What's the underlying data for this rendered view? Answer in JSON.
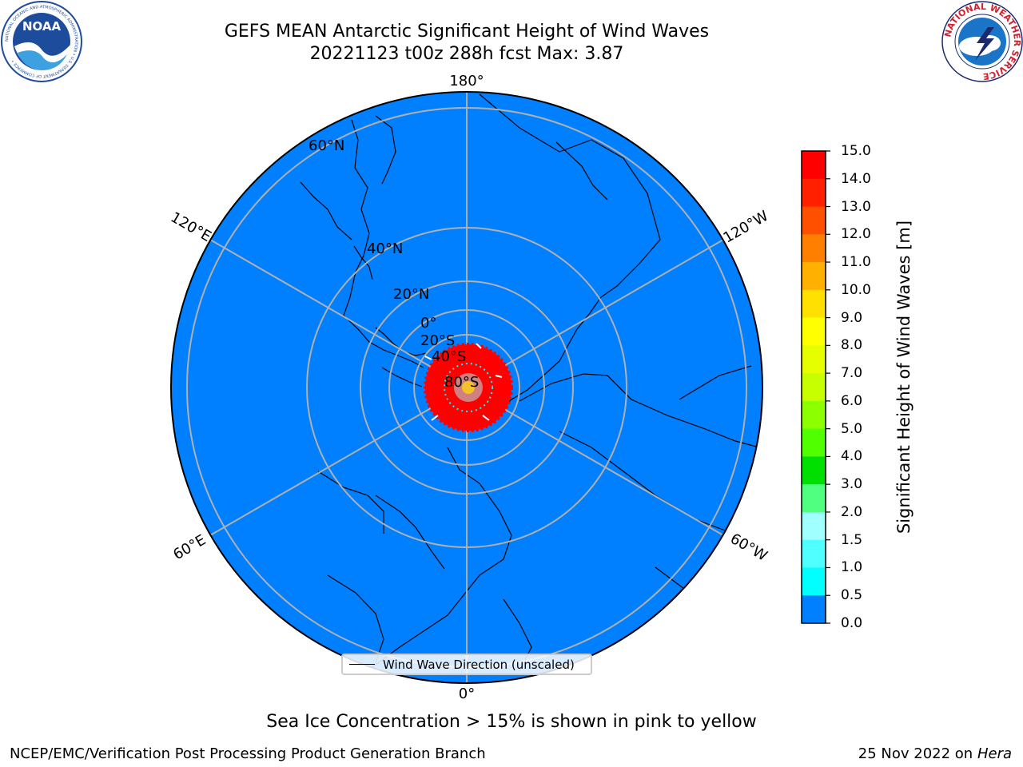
{
  "header": {
    "title_line1": "GEFS MEAN Antarctic Significant Height of Wind Waves",
    "title_line2": "20221123 t00z 288h fcst   Max: 3.87"
  },
  "logos": {
    "left": {
      "name": "NOAA",
      "ring_text": "NATIONAL OCEANIC AND ATMOSPHERIC ADMINISTRATION • U.S. DEPARTMENT OF COMMERCE •",
      "colors": {
        "ring": "#ffffff",
        "inner": "#1e4c9c",
        "wave": "#3da0e0"
      }
    },
    "right": {
      "name": "National Weather Service",
      "ring_text": "NATIONAL WEATHER SERVICE",
      "colors": {
        "ring": "#d2202f",
        "inner": "#1a75c9"
      }
    }
  },
  "map": {
    "projection": "south polar stereographic",
    "ocean_color": "#0080ff",
    "longitude_labels": [
      "180°",
      "120°W",
      "60°W",
      "0°",
      "60°E",
      "120°E"
    ],
    "latitude_labels": [
      "60°N",
      "40°N",
      "20°N",
      "0°",
      "20°S",
      "40°S",
      "80°S"
    ],
    "high_wave_color": "#ff0000"
  },
  "colorbar": {
    "label": "Significant Height of Wind Waves [m]",
    "ticks": [
      "15.0",
      "14.0",
      "13.0",
      "12.0",
      "11.0",
      "10.0",
      "9.0",
      "8.0",
      "7.0",
      "6.0",
      "5.0",
      "4.0",
      "3.0",
      "2.0",
      "1.5",
      "1.0",
      "0.5",
      "0.0"
    ],
    "colors": [
      "#ff0000",
      "#ff2000",
      "#ff5000",
      "#ff8000",
      "#ffb000",
      "#ffe000",
      "#ffff00",
      "#e6ff00",
      "#c8ff00",
      "#8cff00",
      "#50ff00",
      "#00e000",
      "#50ff80",
      "#a0ffff",
      "#50ffff",
      "#00ffff",
      "#0080ff",
      "#0000ff"
    ]
  },
  "legend": {
    "label": "Wind Wave Direction (unscaled)"
  },
  "note": "Sea Ice Concentration > 15% is shown in pink to yellow",
  "footer": {
    "left": "NCEP/EMC/Verification Post Processing Product Generation Branch",
    "right_date": "25 Nov 2022 on",
    "right_host": "Hera"
  }
}
